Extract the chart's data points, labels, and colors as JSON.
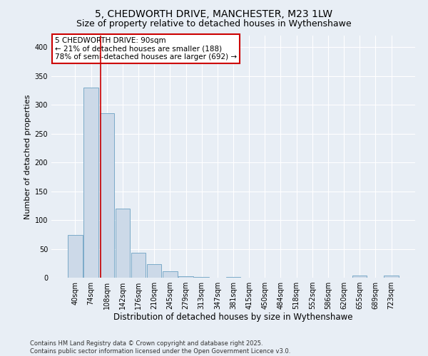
{
  "title1": "5, CHEDWORTH DRIVE, MANCHESTER, M23 1LW",
  "title2": "Size of property relative to detached houses in Wythenshawe",
  "xlabel": "Distribution of detached houses by size in Wythenshawe",
  "ylabel": "Number of detached properties",
  "bins": [
    "40sqm",
    "74sqm",
    "108sqm",
    "142sqm",
    "176sqm",
    "210sqm",
    "245sqm",
    "279sqm",
    "313sqm",
    "347sqm",
    "381sqm",
    "415sqm",
    "450sqm",
    "484sqm",
    "518sqm",
    "552sqm",
    "586sqm",
    "620sqm",
    "655sqm",
    "689sqm",
    "723sqm"
  ],
  "values": [
    74,
    330,
    285,
    120,
    43,
    23,
    11,
    2,
    1,
    0,
    1,
    0,
    0,
    0,
    0,
    0,
    0,
    0,
    4,
    0,
    4
  ],
  "bar_color": "#ccd9e8",
  "bar_edge_color": "#7baac8",
  "red_line_x": 1.62,
  "annotation_title": "5 CHEDWORTH DRIVE: 90sqm",
  "annotation_line1": "← 21% of detached houses are smaller (188)",
  "annotation_line2": "78% of semi-detached houses are larger (692) →",
  "annotation_box_color": "#ffffff",
  "annotation_border_color": "#cc0000",
  "ylim": [
    0,
    420
  ],
  "yticks": [
    0,
    50,
    100,
    150,
    200,
    250,
    300,
    350,
    400
  ],
  "title1_fontsize": 10,
  "title2_fontsize": 9,
  "xlabel_fontsize": 8.5,
  "ylabel_fontsize": 8,
  "annotation_fontsize": 7.5,
  "tick_fontsize": 7,
  "footer": "Contains HM Land Registry data © Crown copyright and database right 2025.\nContains public sector information licensed under the Open Government Licence v3.0.",
  "footer_fontsize": 6,
  "bg_color": "#e8eef5",
  "plot_bg_color": "#e8eef5",
  "grid_color": "#ffffff"
}
